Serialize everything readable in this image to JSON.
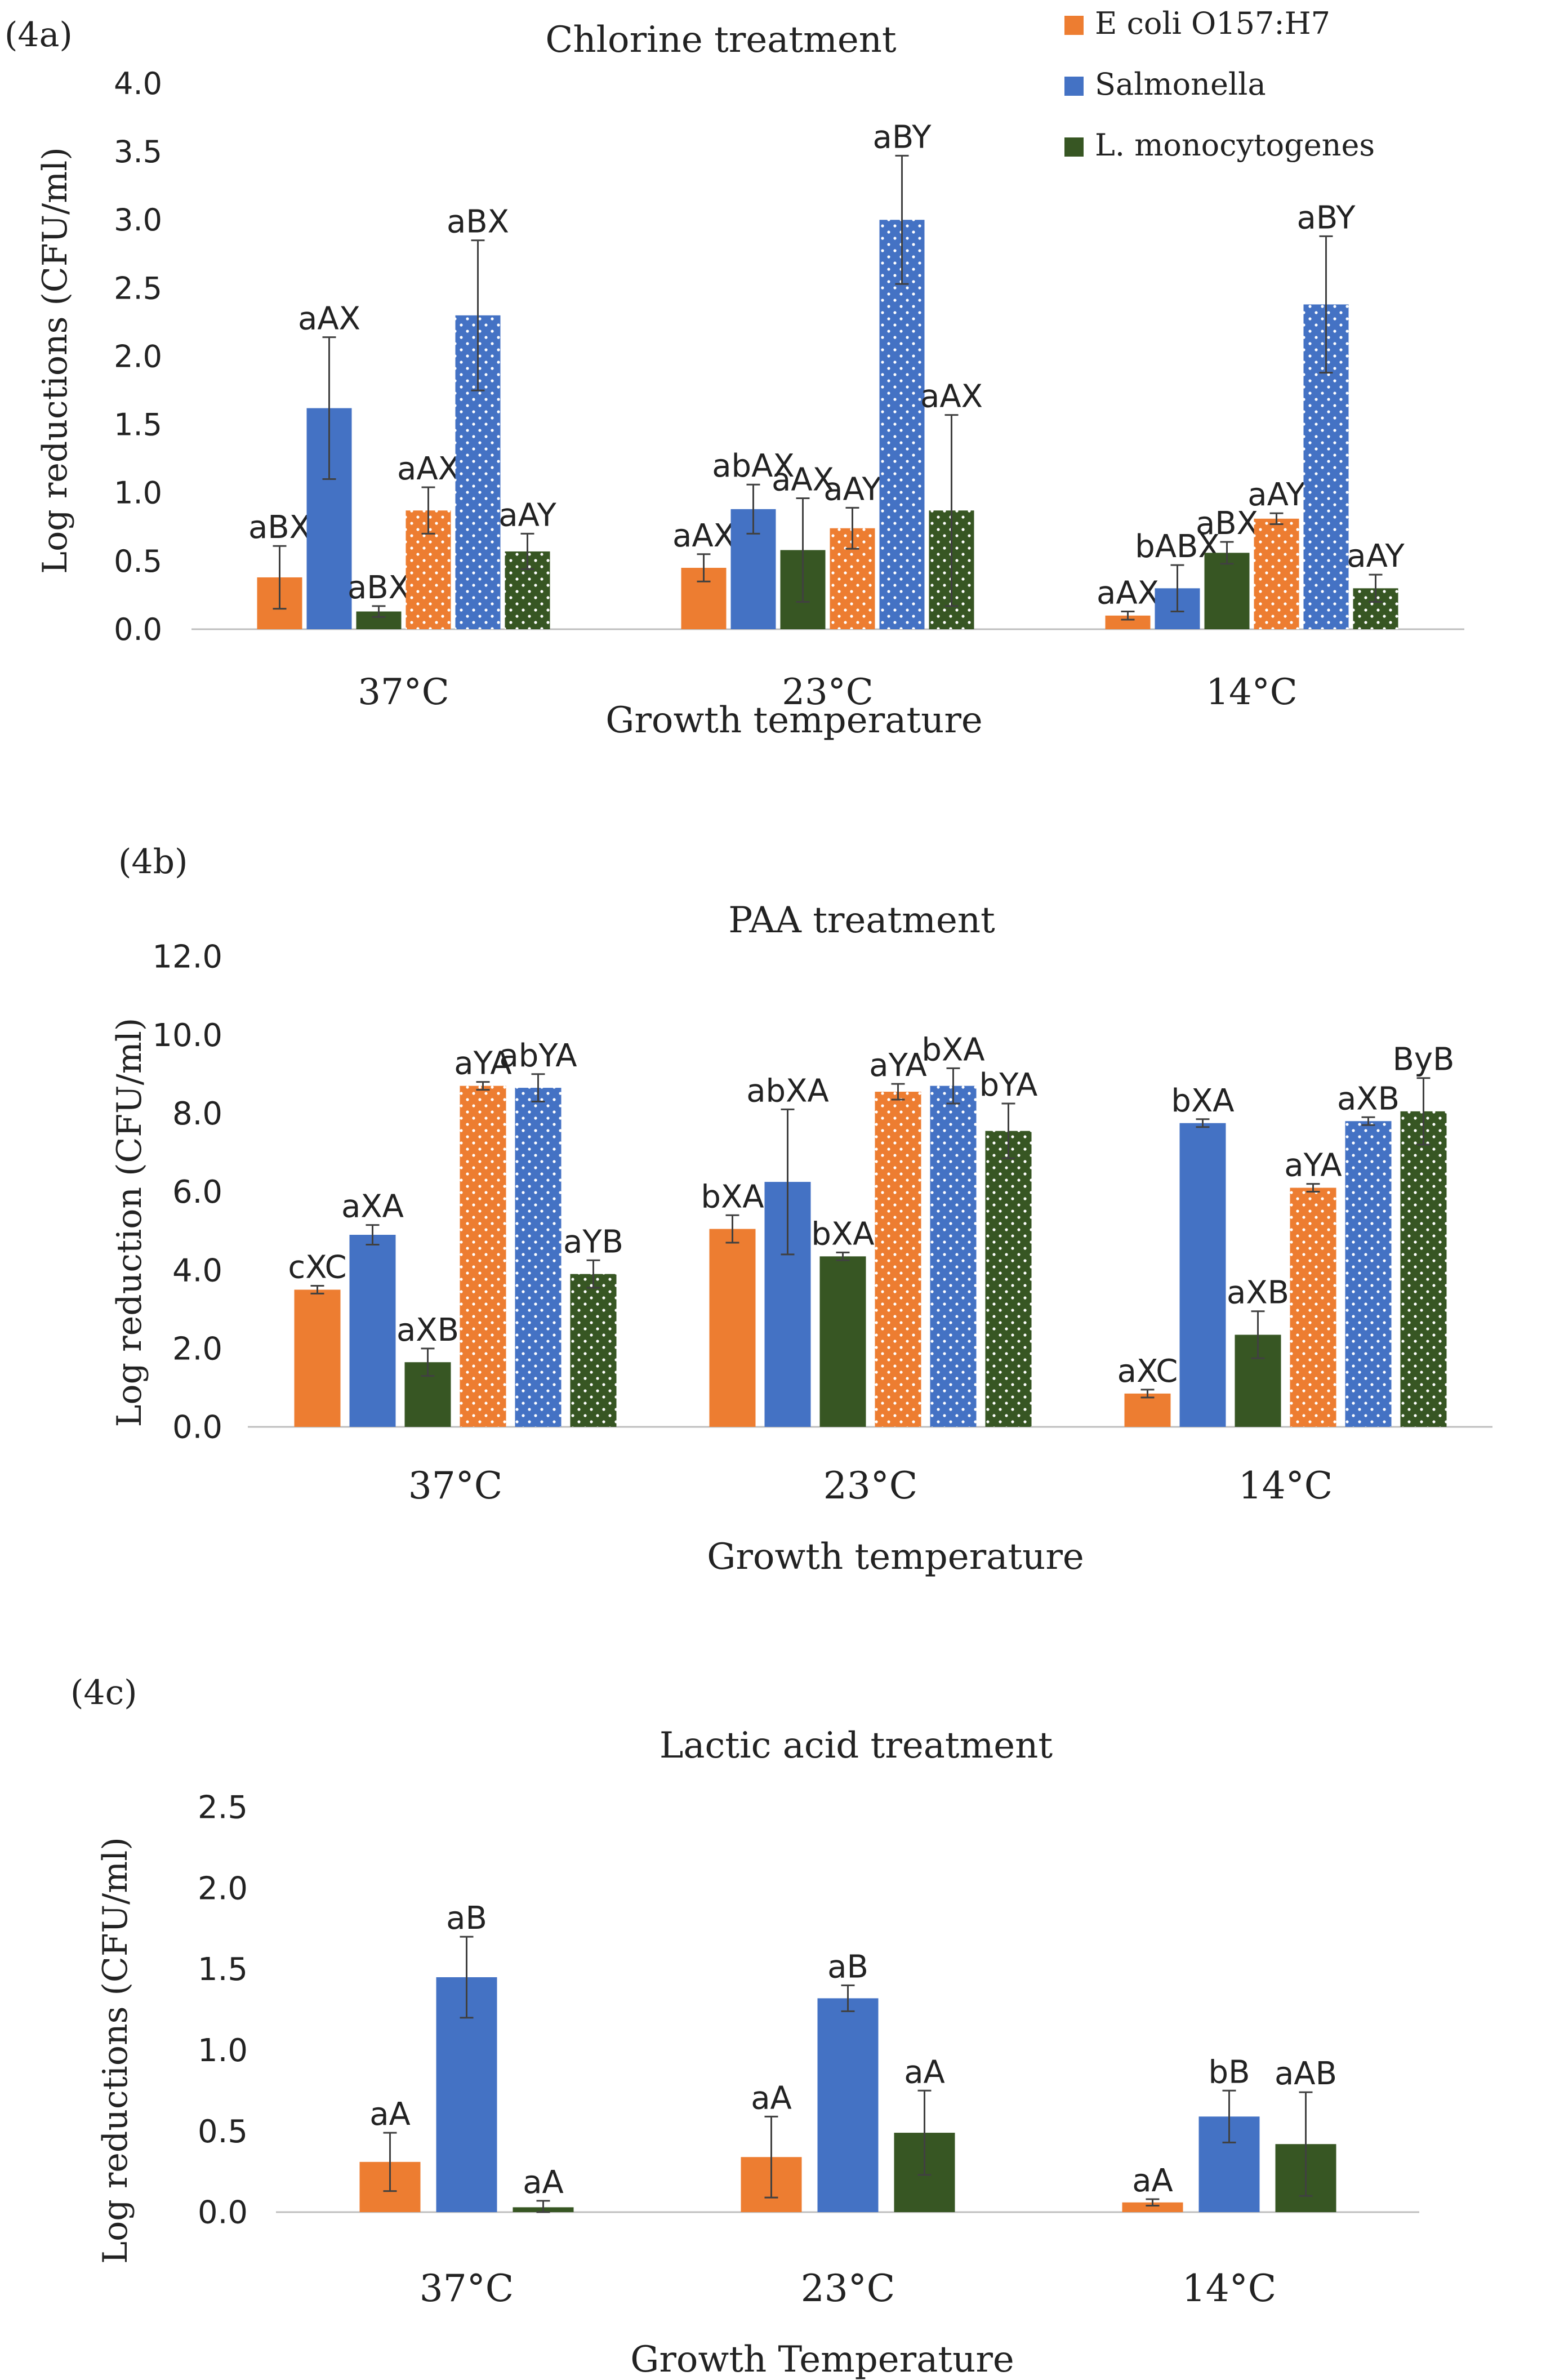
{
  "colors": {
    "ecoli": "#ED7D31",
    "salmonella": "#4472C4",
    "listeria": "#375623",
    "axis": "#bfbfbf",
    "error": "#404040"
  },
  "chart_data": [
    {
      "type": "bar",
      "panel_label": "(4a)",
      "title": "Chlorine treatment",
      "xlabel": "Growth temperature",
      "ylabel": "Log reductions (CFU/ml)",
      "ylim": [
        0,
        4
      ],
      "yticks": [
        "0.0",
        "0.5",
        "1.0",
        "1.5",
        "2.0",
        "2.5",
        "3.0",
        "3.5",
        "4.0"
      ],
      "categories": [
        "37°C",
        "23°C",
        "14°C"
      ],
      "legend": {
        "position": "top-right",
        "entries": [
          "E coli O157:H7",
          "Salmonella",
          "L. monocytogenes"
        ]
      },
      "series": [
        {
          "name": "E coli O157:H7",
          "color": "ecoli",
          "dotted": false,
          "values": [
            0.38,
            0.45,
            0.1
          ],
          "errors": [
            0.23,
            0.1,
            0.03
          ],
          "labels": [
            "aBX",
            "aAX",
            "aAX"
          ]
        },
        {
          "name": "Salmonella",
          "color": "salmonella",
          "dotted": false,
          "values": [
            1.62,
            0.88,
            0.3
          ],
          "errors": [
            0.52,
            0.18,
            0.17
          ],
          "labels": [
            "aAX",
            "abAX",
            "bABX"
          ]
        },
        {
          "name": "L. monocytogenes",
          "color": "listeria",
          "dotted": false,
          "values": [
            0.13,
            0.58,
            0.56
          ],
          "errors": [
            0.04,
            0.38,
            0.08
          ],
          "labels": [
            "aBX",
            "aAX",
            "aBX"
          ]
        },
        {
          "name": "E coli O157:H7",
          "color": "ecoli",
          "dotted": true,
          "values": [
            0.87,
            0.74,
            0.81
          ],
          "errors": [
            0.17,
            0.15,
            0.04
          ],
          "labels": [
            "aAX",
            "aAY",
            "aAY"
          ]
        },
        {
          "name": "Salmonella",
          "color": "salmonella",
          "dotted": true,
          "values": [
            2.3,
            3.0,
            2.38
          ],
          "errors": [
            0.55,
            0.47,
            0.5
          ],
          "labels": [
            "aBX",
            "aBY",
            "aBY"
          ]
        },
        {
          "name": "L. monocytogenes",
          "color": "listeria",
          "dotted": true,
          "values": [
            0.57,
            0.87,
            0.3
          ],
          "errors": [
            0.13,
            0.7,
            0.1
          ],
          "labels": [
            "aAY",
            "aAX",
            "aAY"
          ]
        }
      ]
    },
    {
      "type": "bar",
      "panel_label": "(4b)",
      "title": "PAA treatment",
      "xlabel": "Growth temperature",
      "ylabel": "Log reduction (CFU/ml)",
      "ylim": [
        0,
        12
      ],
      "yticks": [
        "0.0",
        "2.0",
        "4.0",
        "6.0",
        "8.0",
        "10.0",
        "12.0"
      ],
      "categories": [
        "37°C",
        "23°C",
        "14°C"
      ],
      "series": [
        {
          "name": "E coli O157:H7",
          "color": "ecoli",
          "dotted": false,
          "values": [
            3.5,
            5.05,
            0.85
          ],
          "errors": [
            0.1,
            0.35,
            0.1
          ],
          "labels": [
            "cXC",
            "bXA",
            "aXC"
          ]
        },
        {
          "name": "Salmonella",
          "color": "salmonella",
          "dotted": false,
          "values": [
            4.9,
            6.25,
            7.75
          ],
          "errors": [
            0.25,
            1.85,
            0.1
          ],
          "labels": [
            "aXA",
            "abXA",
            "bXA"
          ]
        },
        {
          "name": "L. monocytogenes",
          "color": "listeria",
          "dotted": false,
          "values": [
            1.65,
            4.35,
            2.35
          ],
          "errors": [
            0.35,
            0.1,
            0.6
          ],
          "labels": [
            "aXB",
            "bXA",
            "aXB"
          ]
        },
        {
          "name": "E coli O157:H7",
          "color": "ecoli",
          "dotted": true,
          "values": [
            8.7,
            8.55,
            6.1
          ],
          "errors": [
            0.1,
            0.2,
            0.1
          ],
          "labels": [
            "aYA",
            "aYA",
            "aYA"
          ]
        },
        {
          "name": "Salmonella",
          "color": "salmonella",
          "dotted": true,
          "values": [
            8.65,
            8.7,
            7.8
          ],
          "errors": [
            0.35,
            0.45,
            0.1
          ],
          "labels": [
            "abYA",
            "bXA",
            "aXB"
          ]
        },
        {
          "name": "L. monocytogenes",
          "color": "listeria",
          "dotted": true,
          "values": [
            3.9,
            7.55,
            8.05
          ],
          "errors": [
            0.35,
            0.7,
            0.85
          ],
          "labels": [
            "aYB",
            "bYA",
            "ByB"
          ]
        }
      ]
    },
    {
      "type": "bar",
      "panel_label": "(4c)",
      "title": "Lactic acid treatment",
      "xlabel": "Growth Temperature",
      "ylabel": "Log reductions  (CFU/ml)",
      "ylim": [
        0,
        2.5
      ],
      "yticks": [
        "0.0",
        "0.5",
        "1.0",
        "1.5",
        "2.0",
        "2.5"
      ],
      "categories": [
        "37°C",
        "23°C",
        "14°C"
      ],
      "series": [
        {
          "name": "E coli O157:H7",
          "color": "ecoli",
          "dotted": false,
          "values": [
            0.31,
            0.34,
            0.06
          ],
          "errors": [
            0.18,
            0.25,
            0.02
          ],
          "labels": [
            "aA",
            "aA",
            "aA"
          ]
        },
        {
          "name": "Salmonella",
          "color": "salmonella",
          "dotted": false,
          "values": [
            1.45,
            1.32,
            0.59
          ],
          "errors": [
            0.25,
            0.08,
            0.16
          ],
          "labels": [
            "aB",
            "aB",
            "bB"
          ]
        },
        {
          "name": "L. monocytogenes",
          "color": "listeria",
          "dotted": false,
          "values": [
            0.03,
            0.49,
            0.42
          ],
          "errors": [
            0.04,
            0.26,
            0.32
          ],
          "labels": [
            "aA",
            "aA",
            "aAB"
          ]
        }
      ]
    }
  ]
}
